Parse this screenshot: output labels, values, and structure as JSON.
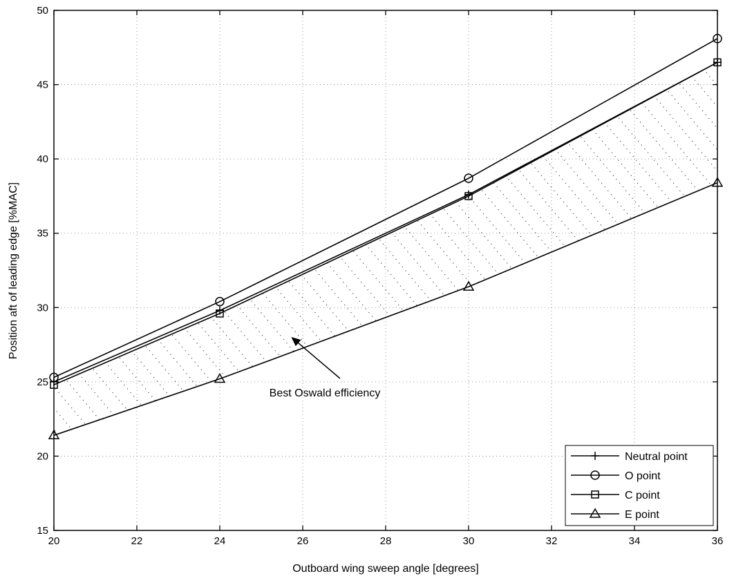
{
  "chart_data": {
    "type": "line",
    "xlabel": "Outboard wing sweep angle [degrees]",
    "ylabel": "Position aft of leading edge [%MAC]",
    "xlim": [
      20,
      36
    ],
    "ylim": [
      15,
      50
    ],
    "xticks": [
      20,
      22,
      24,
      26,
      28,
      30,
      32,
      34,
      36
    ],
    "yticks": [
      15,
      20,
      25,
      30,
      35,
      40,
      45,
      50
    ],
    "grid": "dotted",
    "legend_position": "bottom-right",
    "series": [
      {
        "name": "Neutral point",
        "marker": "plus",
        "x": [
          20,
          24,
          30,
          36
        ],
        "y": [
          25.0,
          29.8,
          37.6,
          46.5
        ]
      },
      {
        "name": "O point",
        "marker": "circle",
        "x": [
          20,
          24,
          30,
          36
        ],
        "y": [
          25.3,
          30.4,
          38.7,
          48.1
        ]
      },
      {
        "name": "C point",
        "marker": "square",
        "x": [
          20,
          24,
          30,
          36
        ],
        "y": [
          24.8,
          29.6,
          37.5,
          46.5
        ]
      },
      {
        "name": "E point",
        "marker": "triangle",
        "x": [
          20,
          24,
          30,
          36
        ],
        "y": [
          21.4,
          25.2,
          31.4,
          38.4
        ]
      }
    ],
    "shaded_region": {
      "between": [
        "C point",
        "E point"
      ],
      "pattern": "dotted-hatch"
    },
    "annotation": {
      "text": "Best Oswald efficiency",
      "points_to": {
        "x": 25.8,
        "y": 28.3
      }
    }
  }
}
